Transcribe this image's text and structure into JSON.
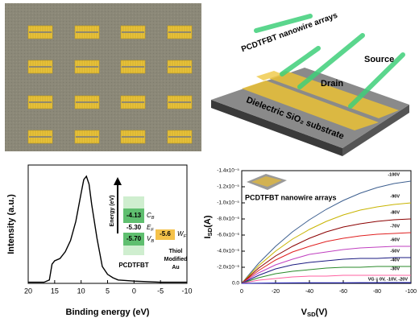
{
  "schematic": {
    "nanowire_label": "PCDTFBT nanowire arrays",
    "source": "Source",
    "drain": "Drain",
    "substrate": "Dielectric SiO₂ substrate"
  },
  "chart_data": [
    {
      "type": "line",
      "x_label": "Binding energy (eV)",
      "y_label": "Intensity (a.u.)",
      "x": [
        20,
        17,
        16,
        15.5,
        15,
        14,
        13,
        12,
        11,
        10,
        9.5,
        9,
        8.5,
        8,
        7,
        6,
        5,
        4,
        3,
        0,
        -5,
        -10
      ],
      "values": [
        0.01,
        0.01,
        0.03,
        0.17,
        0.2,
        0.22,
        0.28,
        0.38,
        0.55,
        0.8,
        0.92,
        0.95,
        0.88,
        0.7,
        0.4,
        0.15,
        0.08,
        0.05,
        0.03,
        0.02,
        0.01,
        0.01
      ],
      "color": "#000000",
      "xlim": [
        20,
        -10
      ],
      "xticks": [
        20,
        15,
        10,
        5,
        0,
        -5,
        -10
      ],
      "ylim": [
        0,
        1.05
      ],
      "inset": {
        "axis": "Energy (eV)",
        "cb_value": "-4.13",
        "cb": [
          "C",
          "B"
        ],
        "ef_value": "-5.30",
        "ef": [
          "E",
          "F"
        ],
        "vb_value": "-5.70",
        "vb": [
          "V",
          "B"
        ],
        "wf_value": "-5.6",
        "wf": [
          "W",
          "F"
        ],
        "material": "PCDTFBT",
        "metal": [
          "Thiol",
          "Modified",
          "Au"
        ]
      }
    },
    {
      "type": "line",
      "x_label": [
        "V",
        "SD",
        "(V)"
      ],
      "y_label": [
        "I",
        "SD",
        "(A)"
      ],
      "inset_label": "PCDTFBT nanowire arrays",
      "x": [
        0,
        -10,
        -20,
        -30,
        -40,
        -50,
        -60,
        -70,
        -80,
        -90,
        -100
      ],
      "xlim": [
        0,
        -100
      ],
      "xticks": [
        0,
        -20,
        -40,
        -60,
        -80,
        -100
      ],
      "ylim": [
        0,
        -1.4e-05
      ],
      "yticks": [
        {
          "value": 0,
          "label": "0.0"
        },
        {
          "value": -2e-06,
          "label": "-2.0x10⁻⁶"
        },
        {
          "value": -4e-06,
          "label": "-4.0x10⁻⁶"
        },
        {
          "value": -6e-06,
          "label": "-6.0x10⁻⁶"
        },
        {
          "value": -8e-06,
          "label": "-8.0x10⁻⁶"
        },
        {
          "value": -1e-05,
          "label": "-1.0x10⁻⁵"
        },
        {
          "value": -1.2e-05,
          "label": "-1.2x10⁻⁵"
        },
        {
          "value": -1.4e-05,
          "label": "-1.4x10⁻⁵"
        }
      ],
      "series": [
        {
          "name": "-100V",
          "color": "#3d5f8f",
          "values": [
            0,
            -2.5e-06,
            -4.6e-06,
            -6.4e-06,
            -7.9e-06,
            -9.2e-06,
            -1.03e-05,
            -1.12e-05,
            -1.19e-05,
            -1.24e-05,
            -1.27e-05
          ]
        },
        {
          "name": "-90V",
          "color": "#c8b400",
          "values": [
            0,
            -2.2e-06,
            -4e-06,
            -5.5e-06,
            -6.7e-06,
            -7.7e-06,
            -8.5e-06,
            -9.1e-06,
            -9.5e-06,
            -9.8e-06,
            -1e-05
          ]
        },
        {
          "name": "-80V",
          "color": "#8b0000",
          "values": [
            0,
            -1.9e-06,
            -3.4e-06,
            -4.6e-06,
            -5.6e-06,
            -6.4e-06,
            -7e-06,
            -7.4e-06,
            -7.7e-06,
            -7.9e-06,
            -8e-06
          ]
        },
        {
          "name": "-70V",
          "color": "#e02020",
          "values": [
            0,
            -1.6e-06,
            -2.9e-06,
            -3.9e-06,
            -4.6e-06,
            -5.2e-06,
            -5.6e-06,
            -5.9e-06,
            -6.1e-06,
            -6.2e-06,
            -6.3e-06
          ]
        },
        {
          "name": "-60V",
          "color": "#c040c0",
          "values": [
            0,
            -1.3e-06,
            -2.3e-06,
            -3e-06,
            -3.6e-06,
            -3.9e-06,
            -4.2e-06,
            -4.4e-06,
            -4.5e-06,
            -4.6e-06,
            -4.6e-06
          ]
        },
        {
          "name": "-50V",
          "color": "#1a1a80",
          "values": [
            0,
            -1e-06,
            -1.8e-06,
            -2.3e-06,
            -2.6e-06,
            -2.8e-06,
            -3e-06,
            -3.1e-06,
            -3.1e-06,
            -3.2e-06,
            -3.2e-06
          ]
        },
        {
          "name": "-40V",
          "color": "#2a8a2a",
          "values": [
            0,
            -7e-07,
            -1.2e-06,
            -1.5e-06,
            -1.7e-06,
            -1.9e-06,
            -2e-06,
            -2e-06,
            -2.1e-06,
            -2.1e-06,
            -2.1e-06
          ]
        },
        {
          "name": "-30V",
          "color": "#ff60a0",
          "values": [
            0,
            -4e-07,
            -6e-07,
            -8e-07,
            -9e-07,
            -9e-07,
            -1e-06,
            -1e-06,
            -1e-06,
            -1e-06,
            -1e-06
          ]
        },
        {
          "name": "VG = 0V, -10V, -20V",
          "color": "#2020c0",
          "values": [
            0,
            -3e-08,
            -5e-08,
            -6e-08,
            -7e-08,
            -8e-08,
            -8e-08,
            -9e-08,
            -9e-08,
            -1e-07,
            -1e-07
          ]
        }
      ]
    }
  ]
}
